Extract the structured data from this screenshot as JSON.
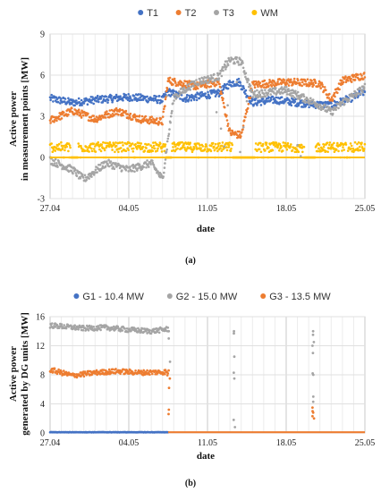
{
  "chart_data": [
    {
      "type": "scatter",
      "panel_label": "(a)",
      "xlabel": "date",
      "ylabel_line1": "Active power",
      "ylabel_line2": "in measurement points [MW]",
      "ylim": [
        -3,
        9
      ],
      "yticks": [
        "-3",
        "0",
        "3",
        "6",
        "9"
      ],
      "yvals": [
        -3,
        0,
        3,
        6,
        9
      ],
      "xlim": [
        0,
        28
      ],
      "xticks": [
        "27.04",
        "04.05",
        "11.05",
        "18.05",
        "25.05"
      ],
      "xvals": [
        0,
        7,
        14,
        21,
        28
      ],
      "legend_position": "top",
      "grid": "vertical",
      "series": [
        {
          "name": "T1",
          "color": "#4472C4",
          "segments": [
            [
              0,
              4.3
            ],
            [
              2,
              4.0
            ],
            [
              4,
              4.2
            ],
            [
              7,
              4.4
            ],
            [
              10,
              4.2
            ],
            [
              10.5,
              4.8
            ],
            [
              12,
              4.3
            ],
            [
              15,
              4.7
            ],
            [
              16,
              5.4
            ],
            [
              16.8,
              5.5
            ],
            [
              18,
              4.0
            ],
            [
              20,
              4.2
            ],
            [
              23,
              3.9
            ],
            [
              25,
              3.8
            ],
            [
              27,
              4.4
            ],
            [
              28,
              4.8
            ]
          ]
        },
        {
          "name": "T2",
          "color": "#ED7D31",
          "segments": [
            [
              0,
              2.7
            ],
            [
              2,
              3.4
            ],
            [
              4,
              2.8
            ],
            [
              6,
              3.4
            ],
            [
              8,
              2.8
            ],
            [
              10,
              2.6
            ],
            [
              10.5,
              5.6
            ],
            [
              13,
              5.2
            ],
            [
              15,
              5.5
            ],
            [
              16,
              1.8
            ],
            [
              17,
              1.6
            ],
            [
              18,
              5.3
            ],
            [
              21,
              5.5
            ],
            [
              24,
              5.4
            ],
            [
              25,
              4.2
            ],
            [
              26,
              5.6
            ],
            [
              28,
              6.0
            ]
          ]
        },
        {
          "name": "T3",
          "color": "#A5A5A5",
          "segments": [
            [
              0,
              -0.2
            ],
            [
              2,
              -0.9
            ],
            [
              3,
              -1.6
            ],
            [
              5,
              -0.4
            ],
            [
              7,
              -0.9
            ],
            [
              9,
              -0.4
            ],
            [
              10,
              -1.6
            ],
            [
              11,
              4.4
            ],
            [
              13,
              5.5
            ],
            [
              15,
              5.9
            ],
            [
              16,
              7.1
            ],
            [
              17,
              7.0
            ],
            [
              18,
              4.6
            ],
            [
              21,
              4.9
            ],
            [
              24,
              3.8
            ],
            [
              25,
              3.3
            ],
            [
              26,
              4.0
            ],
            [
              28,
              5.1
            ]
          ]
        },
        {
          "name": "WM",
          "color": "#FFC000",
          "segments": [
            [
              0,
              0.7
            ],
            [
              28,
              0.7
            ]
          ]
        }
      ]
    },
    {
      "type": "scatter",
      "panel_label": "(b)",
      "xlabel": "date",
      "ylabel_line1": "Active power",
      "ylabel_line2": "generated by DG units [MW]",
      "ylim": [
        0,
        16
      ],
      "yticks": [
        "0",
        "4",
        "8",
        "12",
        "16"
      ],
      "yvals": [
        0,
        4,
        8,
        12,
        16
      ],
      "xlim": [
        0,
        28
      ],
      "xticks": [
        "27.04",
        "04.05",
        "11.05",
        "18.05",
        "25.05"
      ],
      "xvals": [
        0,
        7,
        14,
        21,
        28
      ],
      "legend_position": "top",
      "grid": "vertical",
      "series": [
        {
          "name": "G1 - 10.4 MW",
          "color": "#4472C4",
          "segments": [
            [
              0,
              0.1
            ],
            [
              10.5,
              0.1
            ]
          ]
        },
        {
          "name": "G2 - 15.0 MW",
          "color": "#A5A5A5",
          "segments": [
            [
              0,
              14.8
            ],
            [
              3,
              14.4
            ],
            [
              5,
              14.5
            ],
            [
              7,
              14.2
            ],
            [
              9,
              14.0
            ],
            [
              10.5,
              14.3
            ]
          ]
        },
        {
          "name": "G3 - 13.5 MW",
          "color": "#ED7D31",
          "segments": [
            [
              0,
              8.7
            ],
            [
              2,
              7.9
            ],
            [
              4,
              8.3
            ],
            [
              6,
              8.5
            ],
            [
              8,
              8.3
            ],
            [
              10.3,
              8.4
            ],
            [
              10.5,
              8.0
            ]
          ]
        }
      ],
      "flat_series_after": {
        "name": "G3 - 13.5 MW",
        "from": 10.5,
        "to": 28,
        "value": 0.1
      }
    }
  ]
}
